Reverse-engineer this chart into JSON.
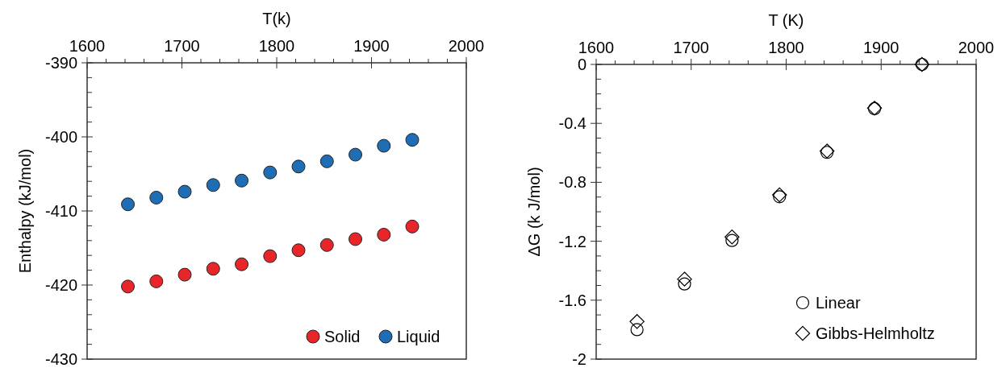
{
  "chart_data": [
    {
      "type": "scatter",
      "xlabel": "T(k)",
      "ylabel": "Enthalpy (kJ/mol)",
      "x": [
        1643,
        1673,
        1703,
        1733,
        1763,
        1793,
        1823,
        1853,
        1883,
        1913,
        1943
      ],
      "series": [
        {
          "name": "Solid",
          "color": "#e8262a",
          "values": [
            -420.2,
            -419.5,
            -418.6,
            -417.8,
            -417.2,
            -416.1,
            -415.3,
            -414.6,
            -413.8,
            -413.2,
            -412.1
          ]
        },
        {
          "name": "Liquid",
          "color": "#1f6eb5",
          "values": [
            -409.1,
            -408.2,
            -407.4,
            -406.5,
            -405.9,
            -404.8,
            -404.0,
            -403.3,
            -402.4,
            -401.2,
            -400.4
          ]
        }
      ],
      "marker": "circle",
      "legend": "bottom right",
      "xlim": [
        1600,
        2000
      ],
      "ylim": [
        -430,
        -390
      ],
      "xticks": [
        1600,
        {
          "value": 1620,
          "label": null
        },
        {
          "value": 1640,
          "label": null
        },
        {
          "value": 1660,
          "label": null
        },
        {
          "value": 1680,
          "label": null
        },
        1700,
        {
          "value": 1720,
          "label": null
        },
        {
          "value": 1740,
          "label": null
        },
        {
          "value": 1760,
          "label": null
        },
        {
          "value": 1780,
          "label": null
        },
        1800,
        {
          "value": 1820,
          "label": null
        },
        {
          "value": 1840,
          "label": null
        },
        {
          "value": 1860,
          "label": null
        },
        {
          "value": 1880,
          "label": null
        },
        1900,
        {
          "value": 1920,
          "label": null
        },
        {
          "value": 1940,
          "label": null
        },
        {
          "value": 1960,
          "label": null
        },
        {
          "value": 1980,
          "label": null
        },
        2000
      ],
      "yticks": [
        -430,
        {
          "value": -428,
          "label": null
        },
        {
          "value": -426,
          "label": null
        },
        {
          "value": -424,
          "label": null
        },
        {
          "value": -422,
          "label": null
        },
        -420,
        {
          "value": -418,
          "label": null
        },
        {
          "value": -416,
          "label": null
        },
        {
          "value": -414,
          "label": null
        },
        {
          "value": -412,
          "label": null
        },
        -410,
        {
          "value": -408,
          "label": null
        },
        {
          "value": -406,
          "label": null
        },
        {
          "value": -404,
          "label": null
        },
        {
          "value": -402,
          "label": null
        },
        -400,
        {
          "value": -398,
          "label": null
        },
        {
          "value": -396,
          "label": null
        },
        {
          "value": -394,
          "label": null
        },
        {
          "value": -392,
          "label": null
        },
        -390
      ]
    },
    {
      "type": "scatter",
      "xlabel": "T (K)",
      "ylabel": "ΔG (k J/mol)",
      "x": [
        1643,
        1693,
        1743,
        1793,
        1843,
        1893,
        1943
      ],
      "series": [
        {
          "name": "Linear",
          "color": "#000000",
          "marker": "circle",
          "values": [
            -1.8,
            -1.49,
            -1.195,
            -0.898,
            -0.597,
            -0.3,
            0
          ]
        },
        {
          "name": "Gibbs-Helmholtz",
          "color": "#000000",
          "marker": "diamond",
          "values": [
            -1.745,
            -1.457,
            -1.171,
            -0.885,
            -0.588,
            -0.297,
            0
          ]
        }
      ],
      "legend": "bottom right",
      "xlim": [
        1600,
        2000
      ],
      "ylim": [
        -2,
        0
      ],
      "xticks": [
        1600,
        {
          "value": 1620,
          "label": null
        },
        {
          "value": 1640,
          "label": null
        },
        {
          "value": 1660,
          "label": null
        },
        {
          "value": 1680,
          "label": null
        },
        1700,
        {
          "value": 1720,
          "label": null
        },
        {
          "value": 1740,
          "label": null
        },
        {
          "value": 1760,
          "label": null
        },
        {
          "value": 1780,
          "label": null
        },
        1800,
        {
          "value": 1820,
          "label": null
        },
        {
          "value": 1840,
          "label": null
        },
        {
          "value": 1860,
          "label": null
        },
        {
          "value": 1880,
          "label": null
        },
        1900,
        {
          "value": 1920,
          "label": null
        },
        {
          "value": 1940,
          "label": null
        },
        {
          "value": 1960,
          "label": null
        },
        {
          "value": 1980,
          "label": null
        },
        2000
      ],
      "yticks": [
        -2,
        {
          "value": -1.9,
          "label": null
        },
        {
          "value": -1.8,
          "label": null
        },
        {
          "value": -1.7,
          "label": null
        },
        -1.6,
        {
          "value": -1.5,
          "label": null
        },
        {
          "value": -1.4,
          "label": null
        },
        {
          "value": -1.3,
          "label": null
        },
        -1.2,
        {
          "value": -1.1,
          "label": null
        },
        {
          "value": -1.0,
          "label": null
        },
        {
          "value": -0.9,
          "label": null
        },
        -0.8,
        {
          "value": -0.7,
          "label": null
        },
        {
          "value": -0.6,
          "label": null
        },
        {
          "value": -0.5,
          "label": null
        },
        -0.4,
        {
          "value": -0.3,
          "label": null
        },
        {
          "value": -0.2,
          "label": null
        },
        {
          "value": -0.1,
          "label": null
        },
        0
      ]
    }
  ]
}
